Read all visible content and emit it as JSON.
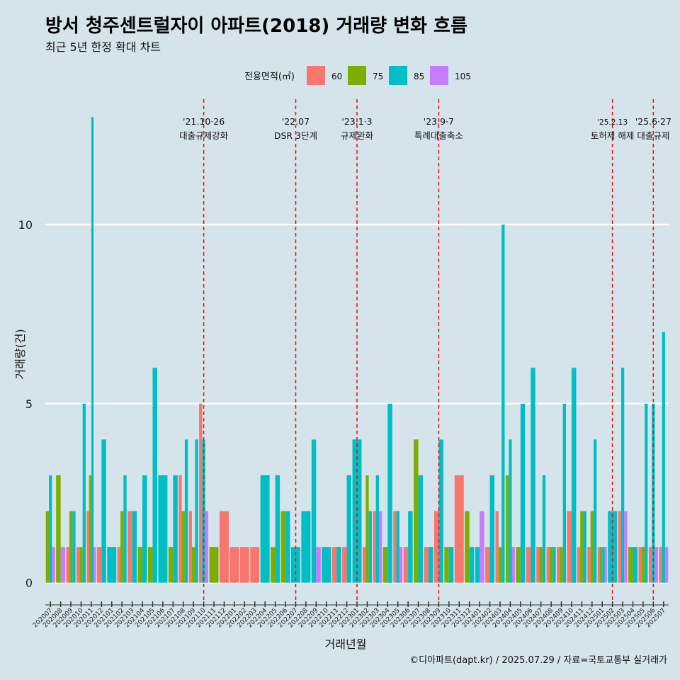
{
  "title": "방서 청주센트럴자이 아파트(2018) 거래량 변화 흐름",
  "subtitle": "최근 5년 한정 확대 차트",
  "caption": "©디아파트(dapt.kr) / 2025.07.29 / 자료=국토교통부 실거래가",
  "colors": {
    "background": "#d5e4eb",
    "grid": "#ffffff",
    "event_line": "#e41a1c",
    "s60": "#f8766d",
    "s75": "#7cae00",
    "s85": "#00bfc4",
    "s105": "#c77cff"
  },
  "chart_data": {
    "type": "bar",
    "title": "방서 청주센트럴자이 아파트(2018) 거래량 변화 흐름",
    "xlabel": "거래년월",
    "ylabel": "거래량(건)",
    "ylim": [
      -0.5,
      13.5
    ],
    "yticks": [
      0,
      5,
      10
    ],
    "legend": {
      "title": "전용면적(㎡)",
      "position": "top"
    },
    "categories": [
      "202007",
      "202008",
      "202009",
      "202010",
      "202011",
      "202012",
      "202101",
      "202102",
      "202103",
      "202104",
      "202105",
      "202106",
      "202107",
      "202108",
      "202109",
      "202110",
      "202111",
      "202112",
      "202201",
      "202202",
      "202203",
      "202204",
      "202205",
      "202206",
      "202207",
      "202208",
      "202209",
      "202210",
      "202211",
      "202212",
      "202301",
      "202302",
      "202303",
      "202304",
      "202305",
      "202306",
      "202307",
      "202308",
      "202309",
      "202310",
      "202311",
      "202312",
      "202401",
      "202402",
      "202403",
      "202404",
      "202405",
      "202406",
      "202407",
      "202408",
      "202409",
      "202410",
      "202411",
      "202412",
      "202501",
      "202502",
      "202503",
      "202504",
      "202505",
      "202506",
      "202507"
    ],
    "series": [
      {
        "name": "60",
        "color": "#f8766d",
        "values": [
          0,
          0,
          1,
          1,
          2,
          1,
          0,
          1,
          2,
          0,
          0,
          0,
          0,
          3,
          2,
          5,
          0,
          2,
          1,
          1,
          1,
          0,
          0,
          0,
          0,
          0,
          0,
          0,
          1,
          1,
          0,
          1,
          2,
          0,
          2,
          1,
          0,
          1,
          2,
          0,
          3,
          0,
          0,
          1,
          2,
          0,
          0,
          1,
          1,
          1,
          1,
          2,
          1,
          1,
          1,
          0,
          2,
          0,
          1,
          1,
          1
        ]
      },
      {
        "name": "75",
        "color": "#7cae00",
        "values": [
          2,
          3,
          2,
          1,
          3,
          0,
          0,
          2,
          0,
          1,
          1,
          0,
          1,
          2,
          1,
          0,
          1,
          0,
          0,
          0,
          0,
          0,
          1,
          2,
          0,
          0,
          0,
          0,
          0,
          0,
          0,
          3,
          0,
          1,
          0,
          0,
          4,
          0,
          0,
          1,
          0,
          2,
          0,
          0,
          1,
          3,
          1,
          0,
          1,
          1,
          1,
          0,
          2,
          2,
          1,
          0,
          0,
          1,
          1,
          0,
          0
        ]
      },
      {
        "name": "85",
        "color": "#00bfc4",
        "values": [
          3,
          0,
          2,
          5,
          13,
          4,
          1,
          3,
          2,
          3,
          6,
          3,
          3,
          4,
          4,
          4,
          0,
          0,
          0,
          0,
          0,
          3,
          3,
          2,
          1,
          2,
          4,
          1,
          1,
          3,
          4,
          2,
          3,
          5,
          2,
          2,
          3,
          1,
          4,
          1,
          0,
          1,
          1,
          3,
          10,
          4,
          5,
          6,
          3,
          1,
          5,
          6,
          2,
          4,
          1,
          2,
          6,
          1,
          5,
          5,
          7
        ]
      },
      {
        "name": "105",
        "color": "#c77cff",
        "values": [
          1,
          1,
          0,
          0,
          1,
          0,
          0,
          0,
          0,
          0,
          0,
          0,
          0,
          0,
          0,
          2,
          0,
          0,
          0,
          0,
          0,
          0,
          0,
          0,
          0,
          0,
          1,
          0,
          0,
          0,
          0,
          0,
          2,
          0,
          1,
          0,
          0,
          0,
          0,
          0,
          0,
          0,
          2,
          0,
          0,
          1,
          0,
          0,
          0,
          0,
          0,
          0,
          0,
          0,
          1,
          0,
          2,
          0,
          0,
          1,
          1
        ]
      }
    ],
    "events": [
      {
        "category": "202110",
        "date": "'21.10·26",
        "label": "대출규제강화"
      },
      {
        "category": "202207",
        "date": "'22.07",
        "label": "DSR 3단계"
      },
      {
        "category": "202301",
        "date": "'23.1·3",
        "label": "규제완화"
      },
      {
        "category": "202309",
        "date": "'23.9·7",
        "label": "특례대출축소"
      },
      {
        "category": "202502",
        "date": "'25.2.13",
        "label": "토허제 해제"
      },
      {
        "category": "202506",
        "date": "'25.6·27",
        "label": "대출규제"
      }
    ]
  }
}
